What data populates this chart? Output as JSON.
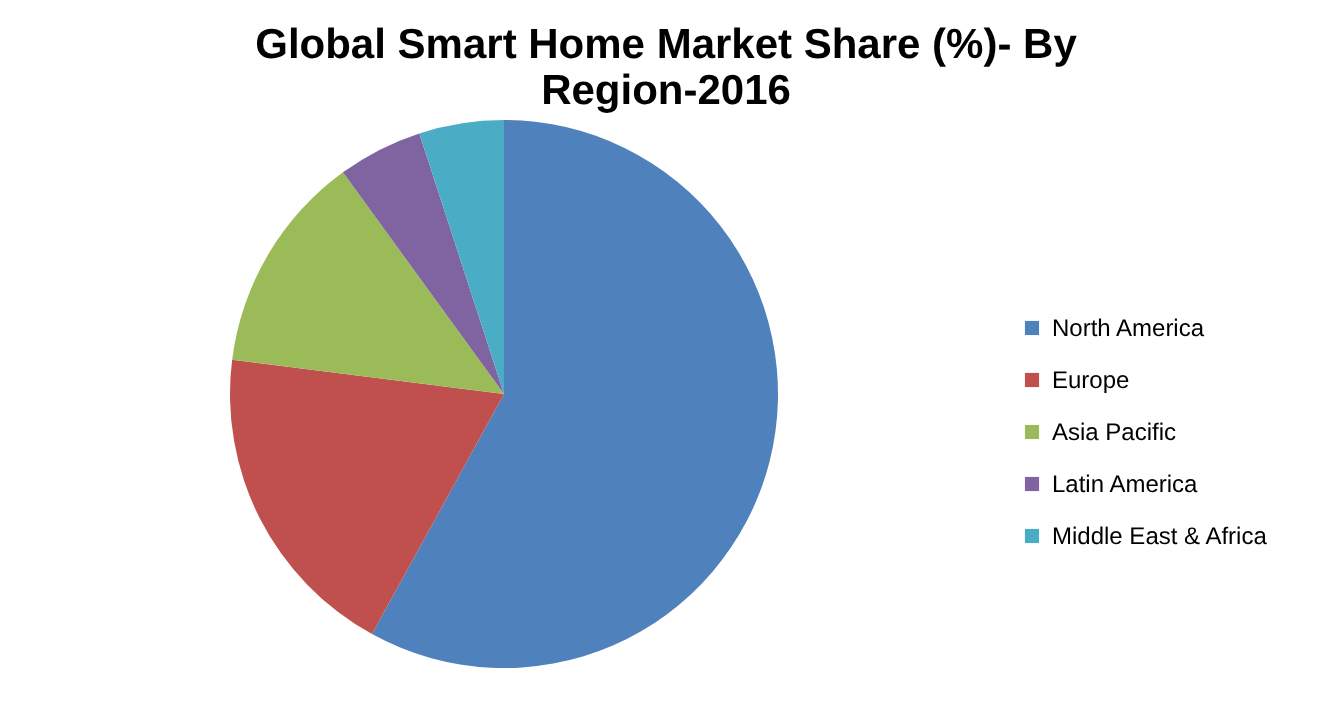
{
  "chart_data": {
    "type": "pie",
    "title": [
      "Global Smart Home Market Share (%)- By",
      "Region-2016"
    ],
    "categories": [
      "North America",
      "Europe",
      "Asia Pacific",
      "Latin America",
      "Middle East & Africa"
    ],
    "values": [
      58,
      19,
      13,
      5,
      5
    ],
    "colors": [
      "#4f81bd",
      "#c0504d",
      "#9bbb59",
      "#8064a2",
      "#4bacc6"
    ],
    "legend": "right"
  }
}
